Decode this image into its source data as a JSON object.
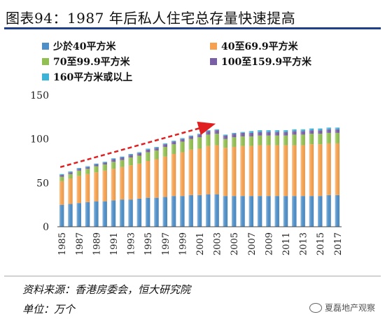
{
  "title": "图表94：1987 年后私人住宅总存量快速提高",
  "source": "资料来源：香港房委会，恒大研究院",
  "unit": "单位：万个",
  "watermark": "夏磊地产观察",
  "colors": [
    "#4f8fc8",
    "#f5a14f",
    "#92bf52",
    "#7960a6",
    "#3cb4d8"
  ],
  "trend_arrow_color": "#e02020",
  "chart_data": {
    "type": "bar",
    "stacked": true,
    "title": "图表94：1987 年后私人住宅总存量快速提高",
    "xlabel": "",
    "ylabel": "",
    "ylim": [
      0,
      150
    ],
    "yticks": [
      0,
      50,
      100,
      150
    ],
    "categories": [
      "1985",
      "1986",
      "1987",
      "1988",
      "1989",
      "1990",
      "1991",
      "1992",
      "1993",
      "1994",
      "1995",
      "1996",
      "1997",
      "1998",
      "1999",
      "2000",
      "2001",
      "2002",
      "2003",
      "2004",
      "2005",
      "2006",
      "2007",
      "2008",
      "2009",
      "2010",
      "2011",
      "2012",
      "2013",
      "2014",
      "2015",
      "2016",
      "2017"
    ],
    "xtick_labels": [
      "1985",
      "1987",
      "1989",
      "1991",
      "1993",
      "1995",
      "1997",
      "1999",
      "2001",
      "2003",
      "2005",
      "2007",
      "2009",
      "2011",
      "2013",
      "2015",
      "2017"
    ],
    "legend_position": "top",
    "series": [
      {
        "name": "少於40平方米",
        "values": [
          25,
          26,
          27,
          28,
          29,
          29,
          30,
          31,
          31,
          32,
          33,
          33,
          34,
          35,
          35,
          36,
          36,
          37,
          37,
          35,
          35,
          35,
          35,
          35,
          35,
          35,
          35,
          35,
          35,
          35,
          35,
          36,
          36
        ]
      },
      {
        "name": "40至69.9平方米",
        "values": [
          27,
          29,
          31,
          32,
          33,
          35,
          36,
          37,
          39,
          40,
          42,
          44,
          46,
          48,
          50,
          52,
          53,
          55,
          56,
          55,
          56,
          57,
          57,
          58,
          58,
          58,
          58,
          58,
          58,
          59,
          59,
          59,
          59
        ]
      },
      {
        "name": "70至99.9平方米",
        "values": [
          5,
          5,
          6,
          6,
          7,
          7,
          8,
          8,
          9,
          9,
          10,
          10,
          11,
          11,
          12,
          12,
          13,
          13,
          13,
          10,
          11,
          11,
          11,
          11,
          11,
          11,
          11,
          12,
          12,
          12,
          12,
          12,
          12
        ]
      },
      {
        "name": "100至159.9平方米",
        "values": [
          2,
          2,
          2,
          2,
          2,
          2,
          3,
          3,
          3,
          3,
          3,
          3,
          3,
          3,
          3,
          3,
          3,
          4,
          4,
          4,
          4,
          4,
          4,
          4,
          4,
          4,
          4,
          4,
          4,
          4,
          4,
          4,
          4
        ]
      },
      {
        "name": "160平方米或以上",
        "values": [
          1,
          1,
          1,
          1,
          1,
          1,
          1,
          1,
          1,
          1,
          1,
          1,
          1,
          1,
          1,
          1,
          1,
          1,
          1,
          1,
          1,
          1,
          2,
          2,
          2,
          2,
          2,
          2,
          2,
          2,
          2,
          2,
          2
        ]
      }
    ],
    "totals": [
      60,
      63,
      67,
      69,
      72,
      74,
      78,
      80,
      83,
      85,
      89,
      91,
      95,
      98,
      101,
      104,
      106,
      110,
      111,
      105,
      107,
      108,
      109,
      110,
      110,
      111,
      111,
      111,
      111,
      112,
      112,
      113,
      113
    ]
  }
}
